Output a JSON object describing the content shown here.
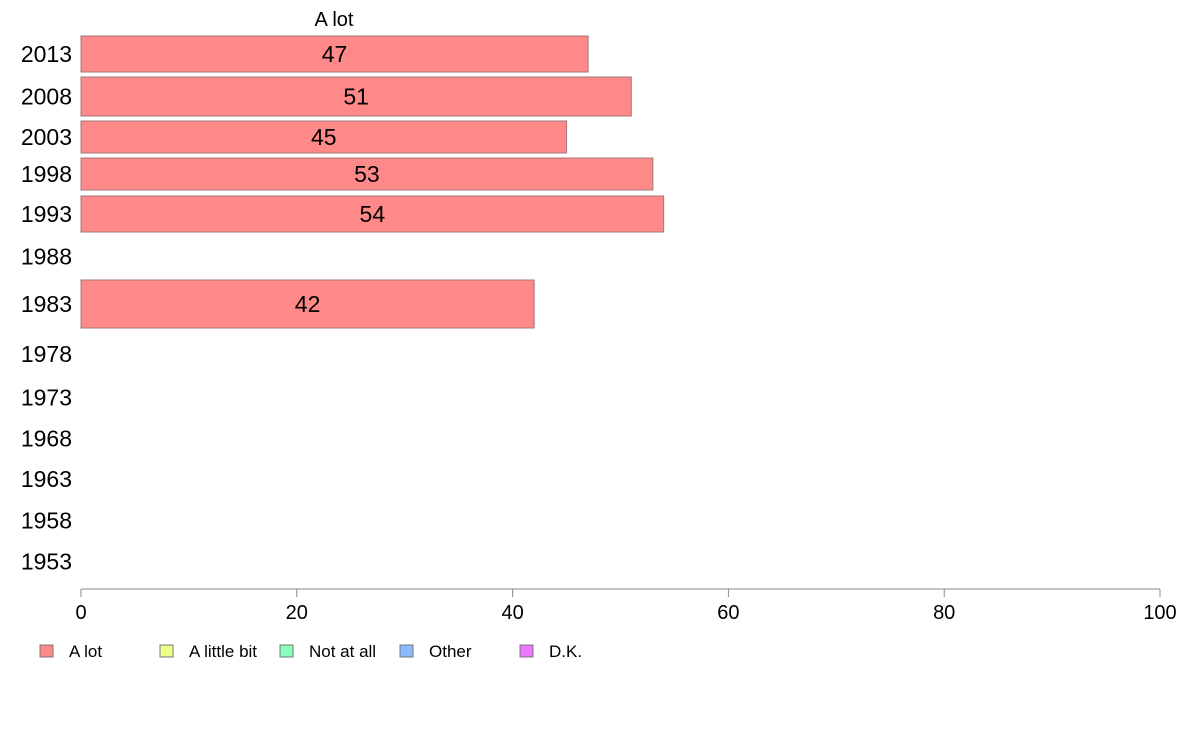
{
  "chart_data": {
    "type": "bar",
    "orientation": "horizontal",
    "title": "A lot",
    "categories": [
      "2013",
      "2008",
      "2003",
      "1998",
      "1993",
      "1988",
      "1983",
      "1978",
      "1973",
      "1968",
      "1963",
      "1958",
      "1953"
    ],
    "series": [
      {
        "name": "A lot",
        "color": "#ff8888",
        "values": [
          47,
          51,
          45,
          53,
          54,
          null,
          42,
          null,
          null,
          null,
          null,
          null,
          null
        ]
      }
    ],
    "xlim": [
      0,
      100
    ],
    "xticks": [
      "0",
      "20",
      "40",
      "60",
      "80",
      "100"
    ],
    "grid": false,
    "legend": {
      "placement": "bottom-left",
      "items": [
        {
          "label": "A lot",
          "color": "#ff8888"
        },
        {
          "label": "A little bit",
          "color": "#eeff88"
        },
        {
          "label": "Not at all",
          "color": "#88ffbb"
        },
        {
          "label": "Other",
          "color": "#88bbff"
        },
        {
          "label": "D.K.",
          "color": "#ee77ff"
        }
      ]
    }
  }
}
